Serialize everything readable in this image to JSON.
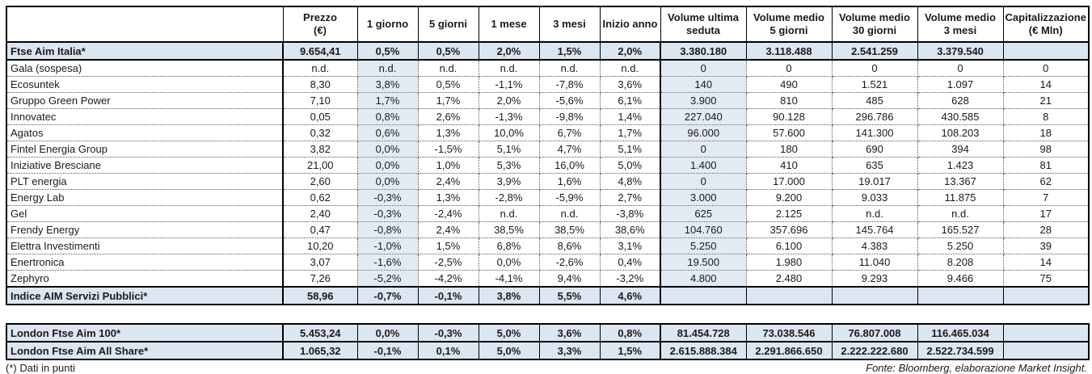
{
  "columns": [
    {
      "key": "name",
      "line1": "",
      "line2": ""
    },
    {
      "key": "prezzo",
      "line1": "Prezzo",
      "line2": "(€)"
    },
    {
      "key": "1-giorno",
      "line1": "1 giorno",
      "line2": ""
    },
    {
      "key": "5-giorni",
      "line1": "5 giorni",
      "line2": ""
    },
    {
      "key": "1-mese",
      "line1": "1 mese",
      "line2": ""
    },
    {
      "key": "3-mesi",
      "line1": "3 mesi",
      "line2": ""
    },
    {
      "key": "inizio-anno",
      "line1": "Inizio anno",
      "line2": ""
    },
    {
      "key": "volume-ultima-seduta",
      "line1": "Volume ultima",
      "line2": "seduta"
    },
    {
      "key": "volume-medio-5-giorni",
      "line1": "Volume medio",
      "line2": "5 giorni"
    },
    {
      "key": "volume-medio-30-giorni",
      "line1": "Volume medio",
      "line2": "30 giorni"
    },
    {
      "key": "volume-medio-3-mesi",
      "line1": "Volume medio",
      "line2": "3 mesi"
    },
    {
      "key": "capitalizzazione",
      "line1": "Capitalizzazione",
      "line2": "(€ Mln)"
    }
  ],
  "main_table": {
    "rows": [
      {
        "type": "index",
        "name": "Ftse Aim Italia*",
        "cells": [
          "9.654,41",
          "0,5%",
          "0,5%",
          "2,0%",
          "1,5%",
          "2,0%",
          "3.380.180",
          "3.118.488",
          "2.541.259",
          "3.379.540",
          ""
        ]
      },
      {
        "type": "data",
        "name": "Gala (sospesa)",
        "cells": [
          "n.d.",
          "n.d.",
          "n.d.",
          "n.d.",
          "n.d.",
          "n.d.",
          "0",
          "0",
          "0",
          "0",
          "0"
        ]
      },
      {
        "type": "data",
        "name": "Ecosuntek",
        "cells": [
          "8,30",
          "3,8%",
          "0,5%",
          "-1,1%",
          "-7,8%",
          "3,6%",
          "140",
          "490",
          "1.521",
          "1.097",
          "14"
        ]
      },
      {
        "type": "data",
        "name": "Gruppo Green Power",
        "cells": [
          "7,10",
          "1,7%",
          "1,7%",
          "2,0%",
          "-5,6%",
          "6,1%",
          "3.900",
          "810",
          "485",
          "628",
          "21"
        ]
      },
      {
        "type": "data",
        "name": "Innovatec",
        "cells": [
          "0,05",
          "0,8%",
          "2,6%",
          "-1,3%",
          "-9,8%",
          "1,4%",
          "227.040",
          "90.128",
          "296.786",
          "430.585",
          "8"
        ]
      },
      {
        "type": "data",
        "name": "Agatos",
        "cells": [
          "0,32",
          "0,6%",
          "1,3%",
          "10,0%",
          "6,7%",
          "1,7%",
          "96.000",
          "57.600",
          "141.300",
          "108.203",
          "18"
        ]
      },
      {
        "type": "data",
        "name": "Fintel Energia Group",
        "cells": [
          "3,82",
          "0,0%",
          "-1,5%",
          "5,1%",
          "4,7%",
          "5,1%",
          "0",
          "180",
          "690",
          "394",
          "98"
        ]
      },
      {
        "type": "data",
        "name": "Iniziative Bresciane",
        "cells": [
          "21,00",
          "0,0%",
          "1,0%",
          "5,3%",
          "16,0%",
          "5,0%",
          "1.400",
          "410",
          "635",
          "1.423",
          "81"
        ]
      },
      {
        "type": "data",
        "name": "PLT energia",
        "cells": [
          "2,60",
          "0,0%",
          "2,4%",
          "3,9%",
          "1,6%",
          "4,8%",
          "0",
          "17.000",
          "19.017",
          "13.367",
          "62"
        ]
      },
      {
        "type": "data",
        "name": "Energy Lab",
        "cells": [
          "0,62",
          "-0,3%",
          "1,3%",
          "-2,8%",
          "-5,9%",
          "2,7%",
          "3.000",
          "9.200",
          "9.033",
          "11.875",
          "7"
        ]
      },
      {
        "type": "data",
        "name": "Gel",
        "cells": [
          "2,40",
          "-0,3%",
          "-2,4%",
          "n.d.",
          "n.d.",
          "-3,8%",
          "625",
          "2.125",
          "n.d.",
          "n.d.",
          "17"
        ]
      },
      {
        "type": "data",
        "name": "Frendy Energy",
        "cells": [
          "0,47",
          "-0,8%",
          "2,4%",
          "38,5%",
          "38,5%",
          "38,6%",
          "104.760",
          "357.696",
          "145.764",
          "165.527",
          "28"
        ]
      },
      {
        "type": "data",
        "name": "Elettra Investimenti",
        "cells": [
          "10,20",
          "-1,0%",
          "1,5%",
          "6,8%",
          "8,6%",
          "3,1%",
          "5.250",
          "6.100",
          "4.383",
          "5.250",
          "39"
        ]
      },
      {
        "type": "data",
        "name": "Enertronica",
        "cells": [
          "3,07",
          "-1,6%",
          "-2,5%",
          "0,0%",
          "-2,6%",
          "0,4%",
          "19.500",
          "1.980",
          "11.040",
          "8.208",
          "14"
        ]
      },
      {
        "type": "data",
        "name": "Zephyro",
        "cells": [
          "7,26",
          "-5,2%",
          "-4,2%",
          "-4,1%",
          "9,4%",
          "-3,2%",
          "4.800",
          "2.480",
          "9.293",
          "9.466",
          "75"
        ]
      },
      {
        "type": "index",
        "name": "Indice AIM Servizi Pubblici*",
        "cells": [
          "58,96",
          "-0,7%",
          "-0,1%",
          "3,8%",
          "5,5%",
          "4,6%",
          "",
          "",
          "",
          "",
          ""
        ]
      }
    ]
  },
  "london_table": {
    "rows": [
      {
        "type": "index",
        "name": "London Ftse Aim 100*",
        "cells": [
          "5.453,24",
          "0,0%",
          "-0,3%",
          "5,0%",
          "3,6%",
          "0,8%",
          "81.454.728",
          "73.038.546",
          "76.807.008",
          "116.465.034",
          ""
        ]
      },
      {
        "type": "index",
        "name": "London Ftse Aim All Share*",
        "cells": [
          "1.065,32",
          "-0,1%",
          "0,1%",
          "5,0%",
          "3,3%",
          "1,5%",
          "2.615.888.384",
          "2.291.866.650",
          "2.222.222.680",
          "2.522.734.599",
          ""
        ]
      }
    ]
  },
  "footer": {
    "left": "(*) Dati in punti",
    "right": "Fonte: Bloomberg, elaborazione Market Insight."
  },
  "colors": {
    "index_row_bg": "#dce6f1",
    "tint_column_bg": "#e2eaf4",
    "border": "#000000"
  }
}
